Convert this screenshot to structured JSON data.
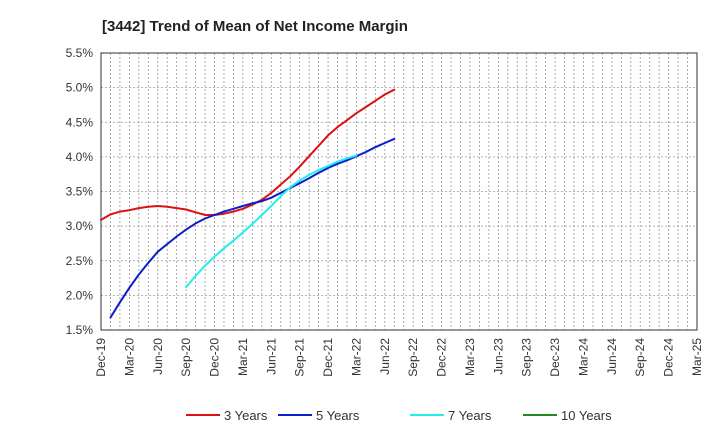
{
  "chart_data": {
    "type": "line",
    "title": "[3442]  Trend of Mean of Net Income Margin",
    "xlabel": "",
    "ylabel": "",
    "x_ticks": [
      "Dec-19",
      "Mar-20",
      "Jun-20",
      "Sep-20",
      "Dec-20",
      "Mar-21",
      "Jun-21",
      "Sep-21",
      "Dec-21",
      "Mar-22",
      "Jun-22",
      "Sep-22",
      "Dec-22",
      "Mar-23",
      "Jun-23",
      "Sep-23",
      "Dec-23",
      "Mar-24",
      "Jun-24",
      "Sep-24",
      "Dec-24",
      "Mar-25"
    ],
    "y_ticks": [
      "1.5%",
      "2.0%",
      "2.5%",
      "3.0%",
      "3.5%",
      "4.0%",
      "4.5%",
      "5.0%",
      "5.5%"
    ],
    "ylim": [
      1.5,
      5.5
    ],
    "grid": true,
    "legend_position": "bottom",
    "series": [
      {
        "name": "3 Years",
        "color": "#dd1111",
        "values": [
          3.09,
          3.17,
          3.21,
          3.23,
          3.26,
          3.28,
          3.29,
          3.28,
          3.26,
          3.24,
          3.2,
          3.16,
          3.16,
          3.18,
          3.21,
          3.25,
          3.31,
          3.38,
          3.48,
          3.6,
          3.72,
          3.86,
          4.01,
          4.16,
          4.31,
          4.43,
          4.53,
          4.63,
          4.72,
          4.81,
          4.9,
          4.97
        ]
      },
      {
        "name": "5 Years",
        "color": "#0a1ecc",
        "values": [
          1.68,
          1.9,
          2.11,
          2.3,
          2.47,
          2.63,
          2.74,
          2.85,
          2.95,
          3.04,
          3.11,
          3.16,
          3.21,
          3.25,
          3.29,
          3.33,
          3.36,
          3.41,
          3.48,
          3.55,
          3.62,
          3.69,
          3.77,
          3.84,
          3.9,
          3.95,
          4.01,
          4.07,
          4.14,
          4.2,
          4.26
        ]
      },
      {
        "name": "7 Years",
        "color": "#22eeee",
        "values": [
          2.12,
          2.28,
          2.43,
          2.56,
          2.68,
          2.79,
          2.91,
          3.03,
          3.16,
          3.29,
          3.43,
          3.56,
          3.66,
          3.74,
          3.81,
          3.87,
          3.93,
          3.98,
          4.02
        ]
      },
      {
        "name": "10 Years",
        "color": "#228822",
        "values": []
      }
    ],
    "series_start_index": [
      0,
      1,
      9,
      0
    ]
  }
}
